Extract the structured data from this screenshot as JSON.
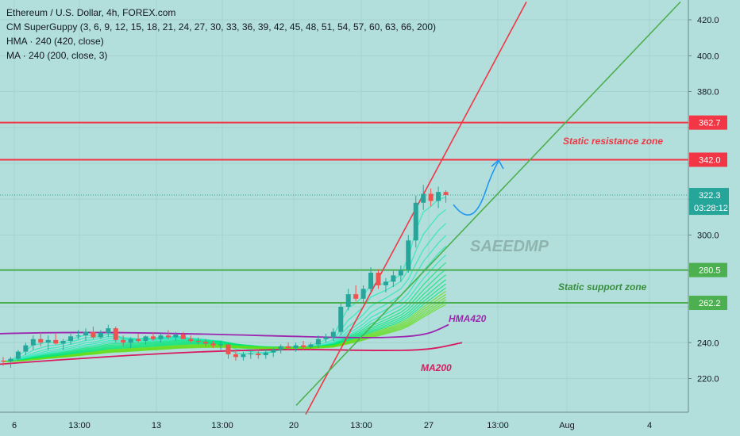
{
  "chart_data": {
    "type": "candlestick",
    "symbol_title": "Ethereum / U.S. Dollar, 4h, FOREX.com",
    "indicators": [
      "CM SuperGuppy (3, 6, 9, 12, 15, 18, 21, 24, 27, 30, 33, 36, 39, 42, 45, 48, 51, 54, 57, 60, 63, 66, 200)",
      "HMA · 240 (420, close)",
      "MA · 240 (200, close, 3)"
    ],
    "y_axis": {
      "range": [
        205,
        430
      ],
      "ticks": [
        220,
        240,
        260,
        280,
        300,
        320,
        340,
        360,
        380,
        400,
        420
      ],
      "tick_labels": [
        "220.0",
        "240.0",
        "",
        "",
        "300.0",
        "",
        "",
        "",
        "380.0",
        "400.0",
        "420.0"
      ]
    },
    "x_axis": {
      "labels": [
        "6",
        "13:00",
        "13",
        "13:00",
        "20",
        "13:00",
        "27",
        "13:00",
        "Aug",
        "4"
      ]
    },
    "price_lines": [
      {
        "value": 362.7,
        "label": "362.7",
        "color": "#f23645"
      },
      {
        "value": 342.0,
        "label": "342.0",
        "color": "#f23645"
      },
      {
        "value": 280.5,
        "label": "280.5",
        "color": "#4caf50"
      },
      {
        "value": 262.2,
        "label": "262.2",
        "color": "#4caf50"
      }
    ],
    "last_price": {
      "value": 322.3,
      "label": "322.3",
      "countdown": "03:28:12",
      "color": "#26a69a"
    },
    "annotations": [
      {
        "text": "Static resistance zone",
        "color": "#f23645"
      },
      {
        "text": "Static support zone",
        "color": "#388e3c"
      },
      {
        "text": "HMA420",
        "color": "#9c27b0"
      },
      {
        "text": "MA200",
        "color": "#d81b60"
      },
      {
        "text": "SAEEDMP",
        "color": "#8fb4b0"
      }
    ],
    "trendlines": [
      {
        "name": "red-trendline",
        "color": "#f23645",
        "from_price": 200,
        "to_price": 430
      },
      {
        "name": "green-trendline",
        "color": "#4caf50",
        "from_price": 205,
        "to_price": 430
      }
    ],
    "candles": [
      [
        0,
        230,
        232,
        227,
        229.5
      ],
      [
        1,
        229.5,
        232,
        226,
        231
      ],
      [
        2,
        231,
        236,
        230,
        235
      ],
      [
        3,
        235,
        240,
        233,
        238.5
      ],
      [
        4,
        238.5,
        244,
        236,
        242
      ],
      [
        5,
        242,
        246,
        238,
        240
      ],
      [
        6,
        240,
        244,
        236,
        241.5
      ],
      [
        7,
        241.5,
        245,
        239,
        239.5
      ],
      [
        8,
        239.5,
        242,
        236,
        241
      ],
      [
        9,
        241,
        245,
        239,
        243.5
      ],
      [
        10,
        243.5,
        247,
        242,
        244
      ],
      [
        11,
        244,
        248,
        241,
        246
      ],
      [
        12,
        246,
        249,
        242,
        243
      ],
      [
        13,
        243,
        247,
        242,
        245.5
      ],
      [
        14,
        245.5,
        250,
        243,
        248
      ],
      [
        15,
        248,
        249,
        240,
        241.5
      ],
      [
        16,
        241.5,
        244,
        238,
        240
      ],
      [
        17,
        240,
        243,
        237,
        242
      ],
      [
        18,
        242,
        245,
        240,
        241
      ],
      [
        19,
        241,
        244,
        239,
        243.5
      ],
      [
        20,
        243.5,
        246,
        241,
        242
      ],
      [
        21,
        242,
        245,
        240,
        244
      ],
      [
        22,
        244,
        247,
        242,
        243
      ],
      [
        23,
        243,
        246,
        241,
        244.5
      ],
      [
        24,
        244.5,
        246,
        242,
        242
      ],
      [
        25,
        242,
        244,
        240,
        241
      ],
      [
        26,
        241,
        243,
        239,
        240.5
      ],
      [
        27,
        240.5,
        242,
        238,
        239.5
      ],
      [
        28,
        239.5,
        241,
        237,
        238.5
      ],
      [
        29,
        238.5,
        241,
        236,
        239
      ],
      [
        30,
        239,
        240,
        231,
        233.5
      ],
      [
        31,
        233.5,
        236,
        230,
        232
      ],
      [
        32,
        232,
        235,
        230,
        233.5
      ],
      [
        33,
        233.5,
        236,
        231,
        234
      ],
      [
        34,
        234,
        236,
        231,
        233
      ],
      [
        35,
        233,
        236,
        231,
        234.5
      ],
      [
        36,
        234.5,
        237,
        232,
        236
      ],
      [
        37,
        236,
        239,
        234,
        238
      ],
      [
        38,
        238,
        240,
        236,
        237
      ],
      [
        39,
        237,
        240,
        235,
        238.5
      ],
      [
        40,
        238.5,
        241,
        236,
        237.5
      ],
      [
        41,
        237.5,
        240,
        236,
        239
      ],
      [
        42,
        239,
        244,
        237,
        242
      ],
      [
        43,
        242,
        245,
        240,
        243
      ],
      [
        44,
        243,
        248,
        241,
        246
      ],
      [
        45,
        246,
        262,
        244,
        260
      ],
      [
        46,
        260,
        270,
        258,
        267
      ],
      [
        47,
        267,
        272,
        263,
        264.5
      ],
      [
        48,
        264.5,
        272,
        262,
        270
      ],
      [
        49,
        270,
        282,
        268,
        279
      ],
      [
        50,
        279,
        281,
        270,
        272
      ],
      [
        51,
        272,
        276,
        268,
        274
      ],
      [
        52,
        274,
        280,
        271,
        277.5
      ],
      [
        53,
        277.5,
        283,
        274,
        280.5
      ],
      [
        54,
        280.5,
        300,
        279,
        297
      ],
      [
        55,
        297,
        322,
        293,
        318
      ],
      [
        56,
        318,
        328,
        314,
        323
      ],
      [
        57,
        323,
        326,
        316,
        319
      ],
      [
        58,
        319,
        327,
        315,
        324
      ],
      [
        59,
        324,
        325,
        318,
        322.3
      ]
    ]
  }
}
